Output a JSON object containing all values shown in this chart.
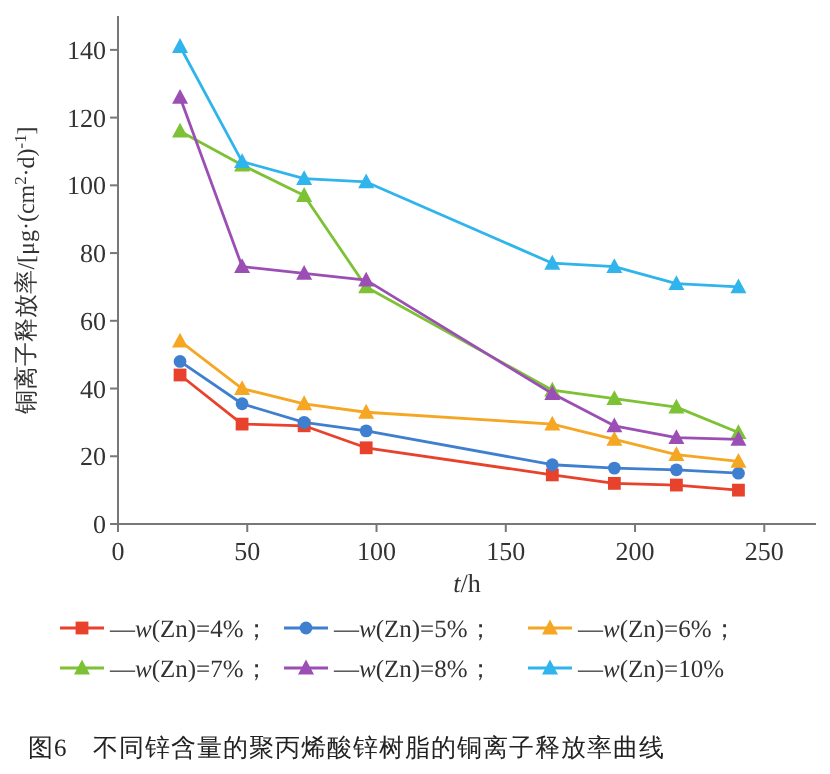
{
  "chart_data": {
    "type": "line",
    "title": "图6　不同锌含量的聚丙烯酸锌树脂的铜离子释放率曲线",
    "xlabel": "*t*/h",
    "ylabel": "铜离子释放率/[μg·(cm$^{2}$·d)$^{-1}$]",
    "x": [
      24,
      48,
      72,
      96,
      168,
      192,
      216,
      240
    ],
    "xlim": [
      0,
      270
    ],
    "xticks": [
      0,
      50,
      100,
      150,
      200,
      250
    ],
    "ylim": [
      0,
      150
    ],
    "yticks": [
      0,
      20,
      40,
      60,
      80,
      100,
      120,
      140
    ],
    "grid": false,
    "legend": "bottom",
    "series": [
      {
        "name": "—*w*(Zn)=4%；",
        "color": "#e8412c",
        "marker": "square",
        "values": [
          44,
          29.5,
          29,
          22.5,
          14.5,
          12,
          11.5,
          10
        ]
      },
      {
        "name": "—*w*(Zn)=5%；",
        "color": "#3f7fd0",
        "marker": "circle",
        "values": [
          48,
          35.5,
          30,
          27.5,
          17.5,
          16.5,
          16,
          15
        ]
      },
      {
        "name": "—*w*(Zn)=6%；",
        "color": "#f5a623",
        "marker": "triangle",
        "values": [
          54,
          40,
          35.5,
          33,
          29.5,
          25,
          20.5,
          18.5
        ]
      },
      {
        "name": "—*w*(Zn)=7%；",
        "color": "#7cc234",
        "marker": "triangle",
        "values": [
          116,
          106,
          97,
          70,
          39.5,
          37,
          34.5,
          27
        ]
      },
      {
        "name": "—*w*(Zn)=8%；",
        "color": "#9b4fb5",
        "marker": "triangle",
        "values": [
          126,
          76,
          74,
          72,
          38.5,
          29,
          25.5,
          25
        ]
      },
      {
        "name": "—*w*(Zn)=10%",
        "color": "#2fb4ec",
        "marker": "triangle",
        "values": [
          141,
          107,
          102,
          101,
          77,
          76,
          71,
          70
        ]
      }
    ]
  }
}
